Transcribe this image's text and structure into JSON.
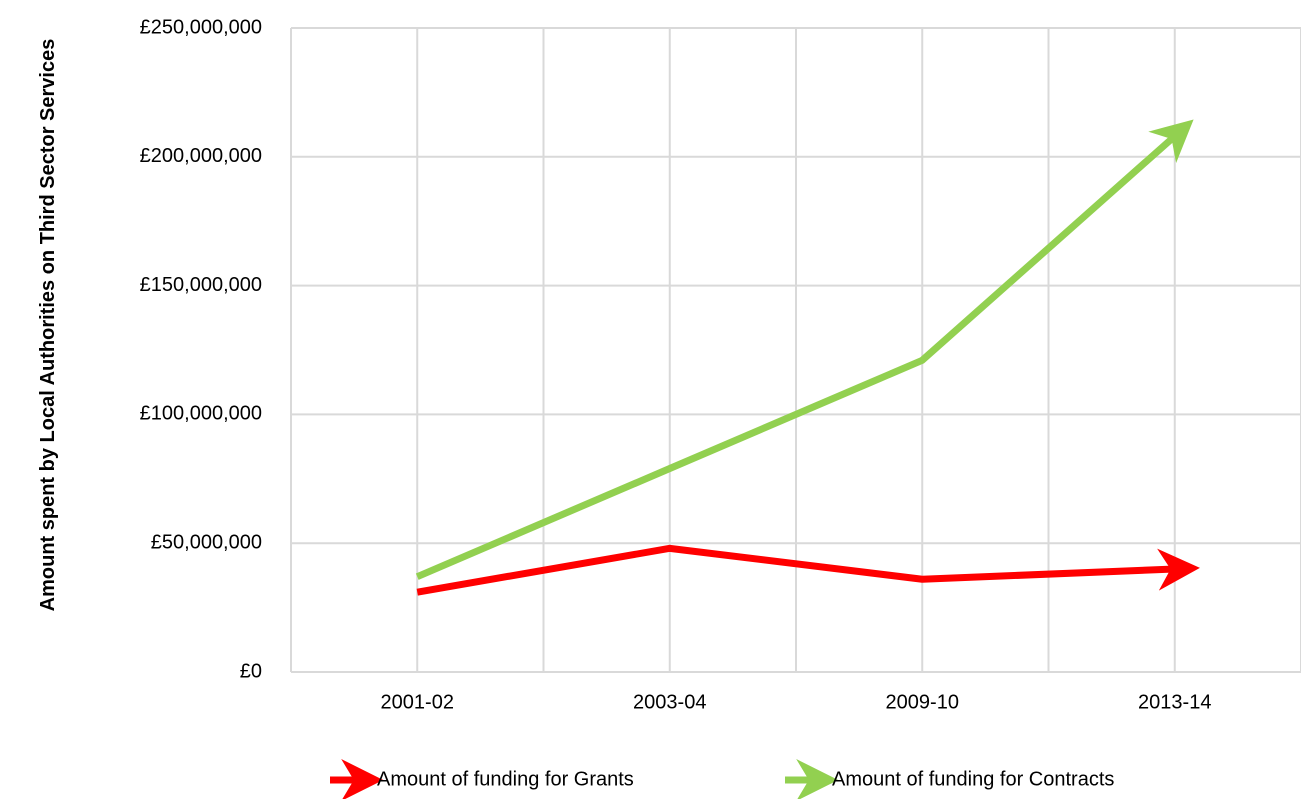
{
  "chart_data": {
    "type": "line",
    "y_label": "Amount spent by Local Authorities on Third Sector Services",
    "categories": [
      "2001-02",
      "2003-04",
      "2009-10",
      "2013-14"
    ],
    "series": [
      {
        "name": "Amount of funding for Grants",
        "color": "#ff0000",
        "values": [
          31000000,
          48000000,
          36000000,
          40000000
        ]
      },
      {
        "name": "Amount of funding for Contracts",
        "color": "#92d050",
        "values": [
          37000000,
          79000000,
          121000000,
          208000000
        ]
      }
    ],
    "ylim": [
      0,
      250000000
    ],
    "yticks": [
      {
        "value": 0,
        "label": "£0"
      },
      {
        "value": 50000000,
        "label": "£50,000,000"
      },
      {
        "value": 100000000,
        "label": "£100,000,000"
      },
      {
        "value": 150000000,
        "label": "£150,000,000"
      },
      {
        "value": 200000000,
        "label": "£200,000,000"
      },
      {
        "value": 250000000,
        "label": "£250,000,000"
      }
    ],
    "grid": true,
    "legend": "bottom"
  }
}
